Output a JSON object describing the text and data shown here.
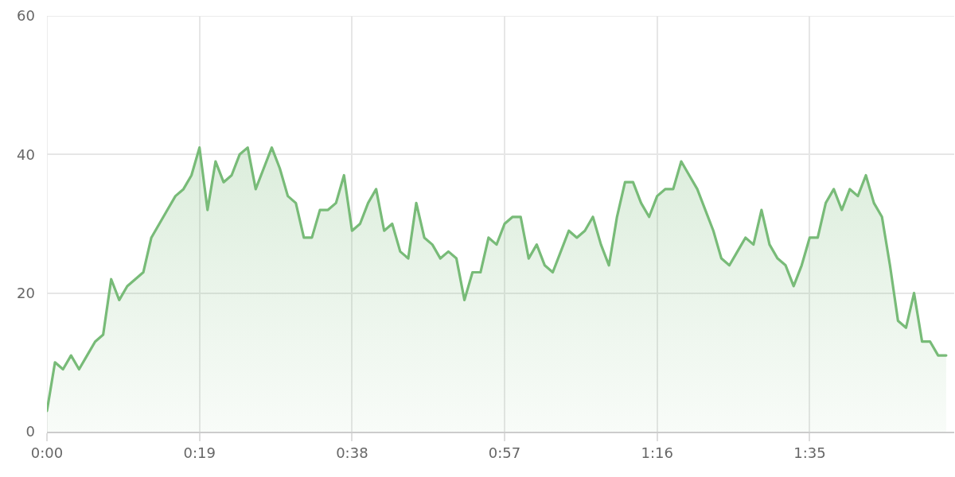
{
  "chart_data": {
    "type": "area",
    "x": [
      0,
      1,
      2,
      3,
      4,
      5,
      6,
      7,
      8,
      9,
      10,
      11,
      12,
      13,
      14,
      15,
      16,
      17,
      18,
      19,
      20,
      21,
      22,
      23,
      24,
      25,
      26,
      27,
      28,
      29,
      30,
      31,
      32,
      33,
      34,
      35,
      36,
      37,
      38,
      39,
      40,
      41,
      42,
      43,
      44,
      45,
      46,
      47,
      48,
      49,
      50,
      51,
      52,
      53,
      54,
      55,
      56,
      57,
      58,
      59,
      60,
      61,
      62,
      63,
      64,
      65,
      66,
      67,
      68,
      69,
      70,
      71,
      72,
      73,
      74,
      75,
      76,
      77,
      78,
      79,
      80,
      81,
      82,
      83,
      84,
      85,
      86,
      87,
      88,
      89,
      90,
      91,
      92,
      93,
      94,
      95,
      96,
      97,
      98,
      99,
      100,
      101,
      102,
      103,
      104,
      105,
      106,
      107,
      108,
      109,
      110,
      111,
      112
    ],
    "series": [
      {
        "color": "#78bb78",
        "values": [
          3,
          10,
          9,
          11,
          9,
          11,
          13,
          14,
          22,
          19,
          21,
          22,
          23,
          28,
          30,
          32,
          34,
          35,
          37,
          41,
          32,
          39,
          36,
          37,
          40,
          41,
          35,
          38,
          41,
          38,
          34,
          33,
          28,
          28,
          32,
          32,
          33,
          37,
          29,
          30,
          33,
          35,
          29,
          30,
          26,
          25,
          33,
          28,
          27,
          25,
          26,
          25,
          19,
          23,
          23,
          28,
          27,
          30,
          31,
          31,
          25,
          27,
          24,
          23,
          26,
          29,
          28,
          29,
          31,
          27,
          24,
          31,
          36,
          36,
          33,
          31,
          34,
          35,
          35,
          39,
          37,
          35,
          32,
          29,
          25,
          24,
          26,
          28,
          27,
          32,
          27,
          25,
          24,
          21,
          24,
          28,
          28,
          33,
          35,
          32,
          35,
          34,
          37,
          33,
          31,
          24,
          16,
          15,
          20,
          13,
          13,
          11,
          11
        ]
      }
    ],
    "xlim": [
      0,
      113
    ],
    "xticks": [
      {
        "value": 0,
        "label": "0:00"
      },
      {
        "value": 19,
        "label": "0:19"
      },
      {
        "value": 38,
        "label": "0:38"
      },
      {
        "value": 57,
        "label": "0:57"
      },
      {
        "value": 76,
        "label": "1:16"
      },
      {
        "value": 95,
        "label": "1:35"
      }
    ],
    "ylim": [
      0,
      60
    ],
    "yticks": [
      0,
      20,
      40,
      60
    ],
    "grid": true,
    "marker": "none",
    "line_style": "solid"
  }
}
